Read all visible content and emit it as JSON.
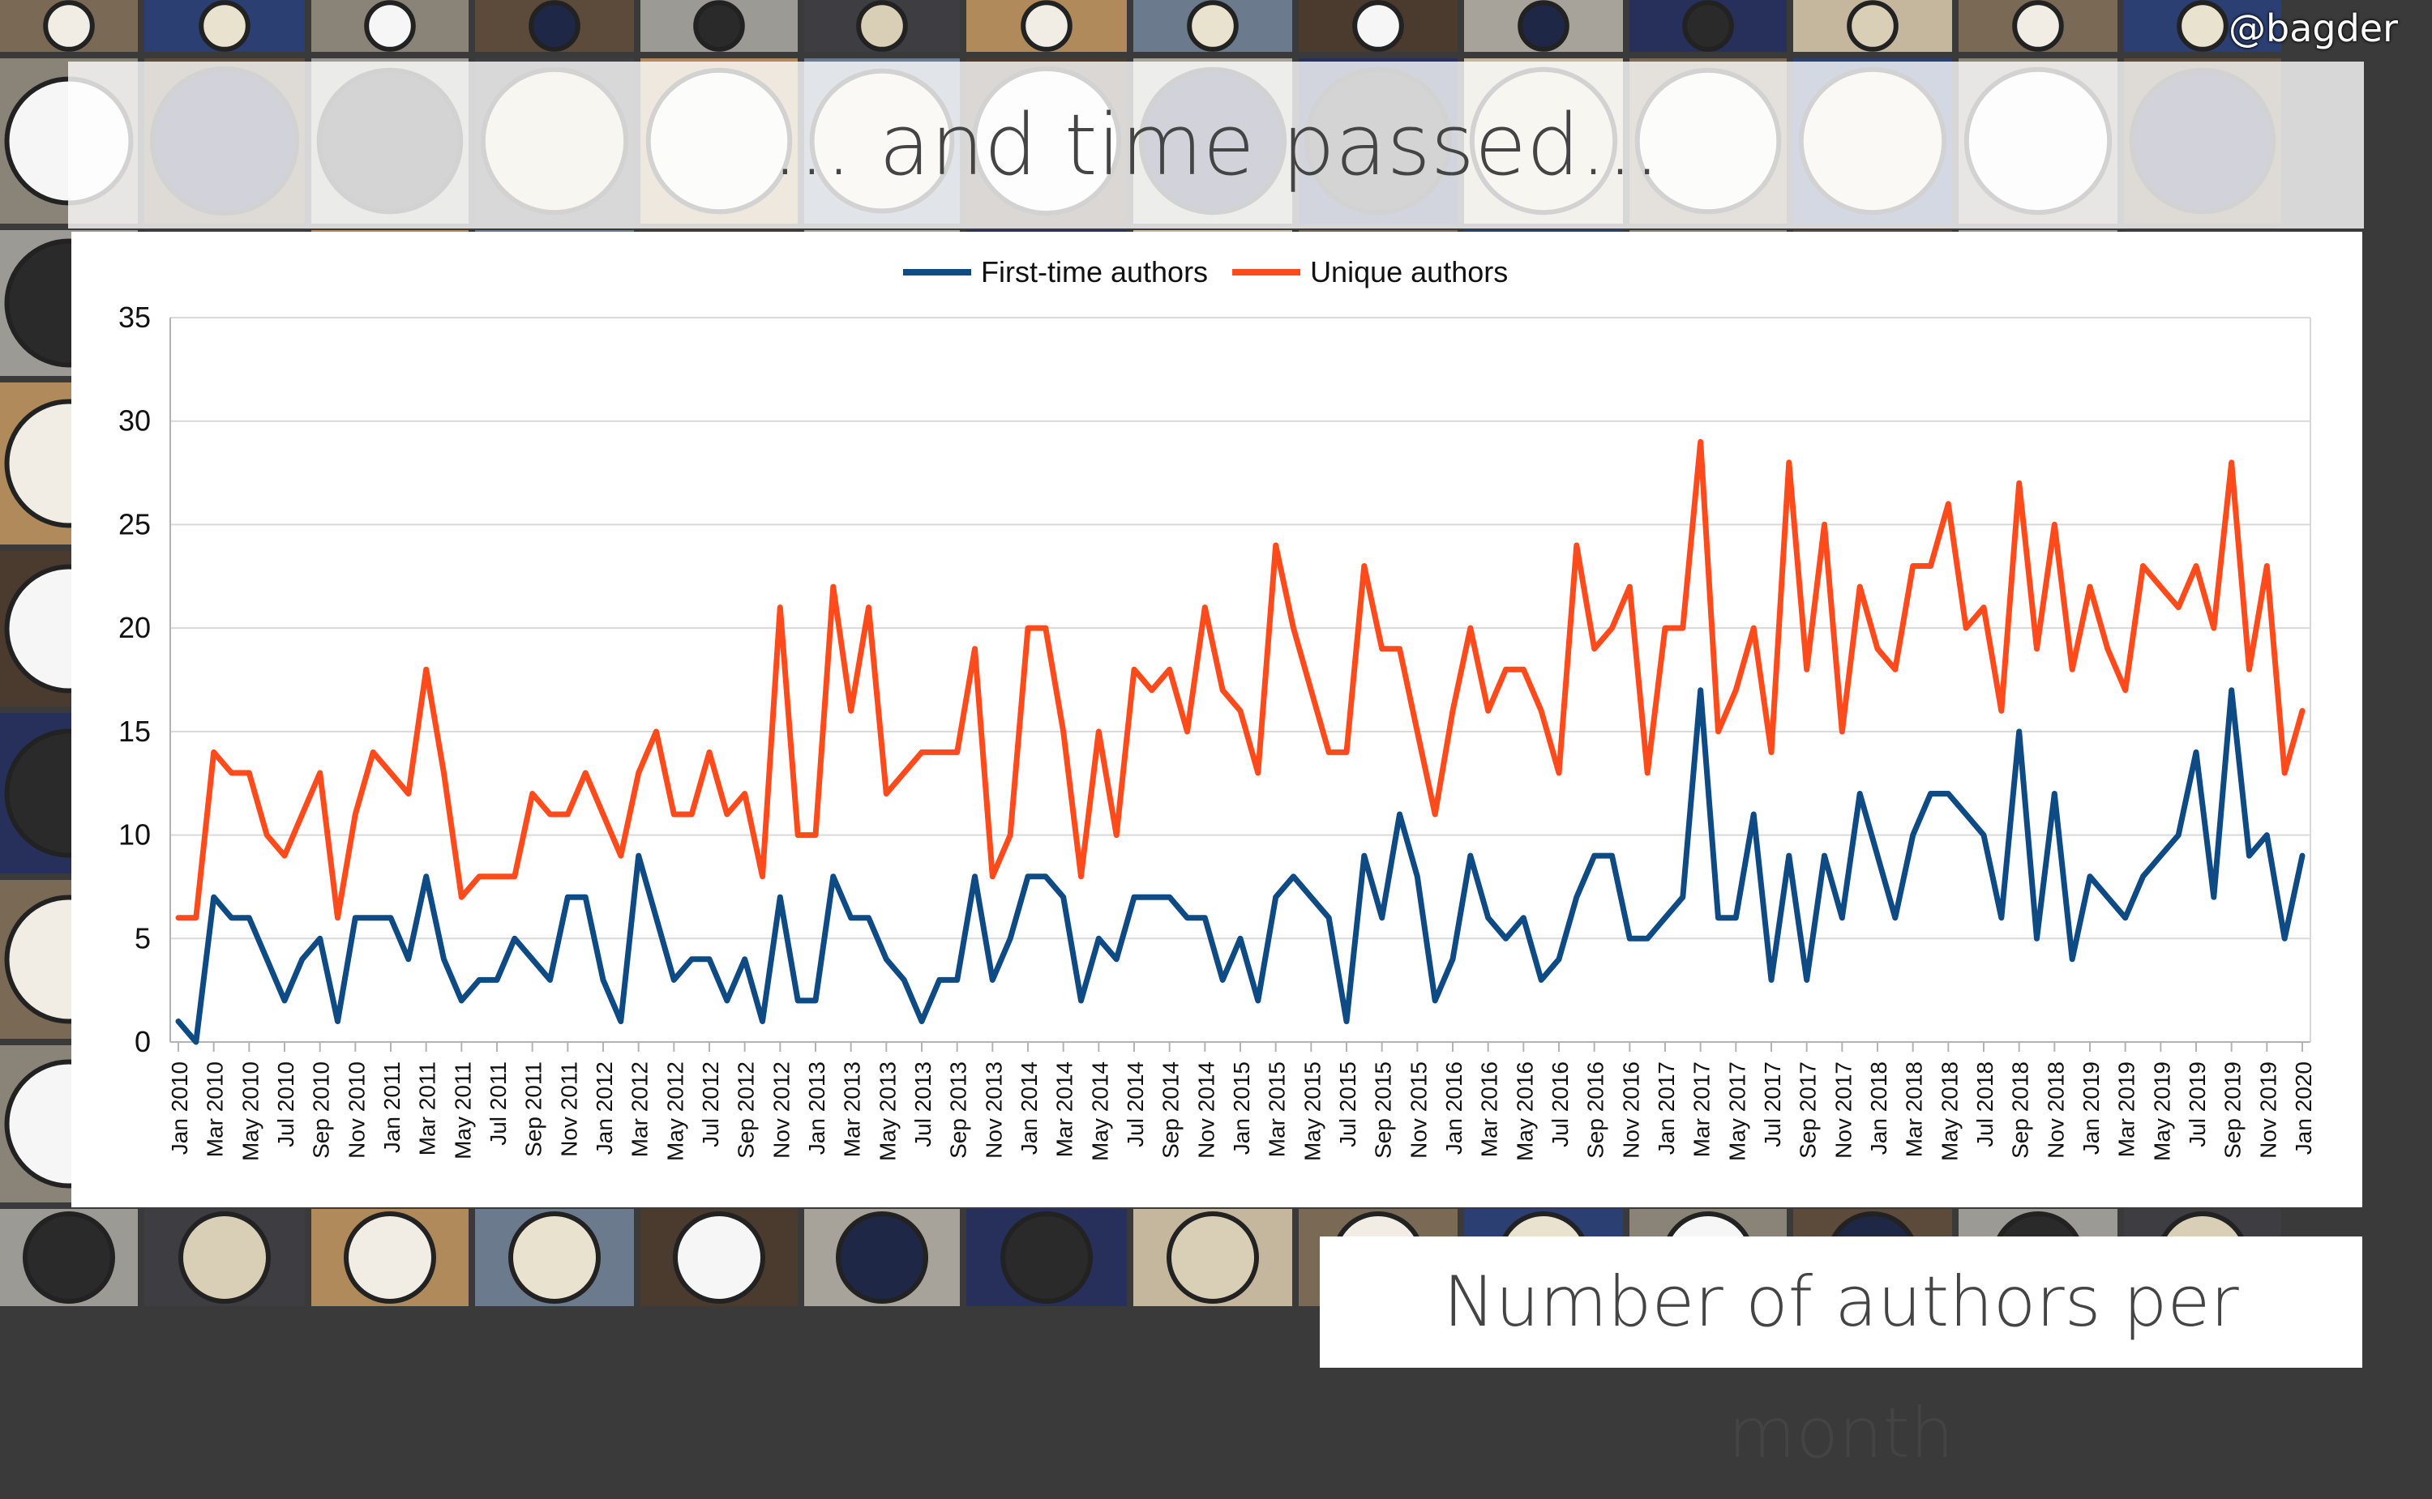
{
  "slide": {
    "title": "... and time passed...",
    "handle": "@bagder",
    "caption": "Number of authors per month"
  },
  "chart_data": {
    "type": "line",
    "title": "",
    "xlabel": "",
    "ylabel": "",
    "ylim": [
      0,
      35
    ],
    "yticks": [
      0,
      5,
      10,
      15,
      20,
      25,
      30,
      35
    ],
    "grid": true,
    "legend_position": "top-center",
    "x_label_every": 2,
    "categories": [
      "Jan 2010",
      "Feb 2010",
      "Mar 2010",
      "Apr 2010",
      "May 2010",
      "Jun 2010",
      "Jul 2010",
      "Aug 2010",
      "Sep 2010",
      "Oct 2010",
      "Nov 2010",
      "Dec 2010",
      "Jan 2011",
      "Feb 2011",
      "Mar 2011",
      "Apr 2011",
      "May 2011",
      "Jun 2011",
      "Jul 2011",
      "Aug 2011",
      "Sep 2011",
      "Oct 2011",
      "Nov 2011",
      "Dec 2011",
      "Jan 2012",
      "Feb 2012",
      "Mar 2012",
      "Apr 2012",
      "May 2012",
      "Jun 2012",
      "Jul 2012",
      "Aug 2012",
      "Sep 2012",
      "Oct 2012",
      "Nov 2012",
      "Dec 2012",
      "Jan 2013",
      "Feb 2013",
      "Mar 2013",
      "Apr 2013",
      "May 2013",
      "Jun 2013",
      "Jul 2013",
      "Aug 2013",
      "Sep 2013",
      "Oct 2013",
      "Nov 2013",
      "Dec 2013",
      "Jan 2014",
      "Feb 2014",
      "Mar 2014",
      "Apr 2014",
      "May 2014",
      "Jun 2014",
      "Jul 2014",
      "Aug 2014",
      "Sep 2014",
      "Oct 2014",
      "Nov 2014",
      "Dec 2014",
      "Jan 2015",
      "Feb 2015",
      "Mar 2015",
      "Apr 2015",
      "May 2015",
      "Jun 2015",
      "Jul 2015",
      "Aug 2015",
      "Sep 2015",
      "Oct 2015",
      "Nov 2015",
      "Dec 2015",
      "Jan 2016",
      "Feb 2016",
      "Mar 2016",
      "Apr 2016",
      "May 2016",
      "Jun 2016",
      "Jul 2016",
      "Aug 2016",
      "Sep 2016",
      "Oct 2016",
      "Nov 2016",
      "Dec 2016",
      "Jan 2017",
      "Feb 2017",
      "Mar 2017",
      "Apr 2017",
      "May 2017",
      "Jun 2017",
      "Jul 2017",
      "Aug 2017",
      "Sep 2017",
      "Oct 2017",
      "Nov 2017",
      "Dec 2017",
      "Jan 2018",
      "Feb 2018",
      "Mar 2018",
      "Apr 2018",
      "May 2018",
      "Jun 2018",
      "Jul 2018",
      "Aug 2018",
      "Sep 2018",
      "Oct 2018",
      "Nov 2018",
      "Dec 2018",
      "Jan 2019",
      "Feb 2019",
      "Mar 2019",
      "Apr 2019",
      "May 2019",
      "Jun 2019",
      "Jul 2019",
      "Aug 2019",
      "Sep 2019",
      "Oct 2019",
      "Nov 2019",
      "Dec 2019",
      "Jan 2020"
    ],
    "series": [
      {
        "name": "First-time authors",
        "color": "#0e4a84",
        "values": [
          1,
          0,
          7,
          6,
          6,
          4,
          2,
          4,
          5,
          1,
          6,
          6,
          6,
          4,
          8,
          4,
          2,
          3,
          3,
          5,
          4,
          3,
          7,
          7,
          3,
          1,
          9,
          6,
          3,
          4,
          4,
          2,
          4,
          1,
          7,
          2,
          2,
          8,
          6,
          6,
          4,
          3,
          1,
          3,
          3,
          8,
          3,
          5,
          8,
          8,
          7,
          2,
          5,
          4,
          7,
          7,
          7,
          6,
          6,
          3,
          5,
          2,
          7,
          8,
          7,
          6,
          1,
          9,
          6,
          11,
          8,
          2,
          4,
          9,
          6,
          5,
          6,
          3,
          4,
          7,
          9,
          9,
          5,
          5,
          6,
          7,
          17,
          6,
          6,
          11,
          3,
          9,
          3,
          9,
          6,
          12,
          9,
          6,
          10,
          12,
          12,
          11,
          10,
          6,
          15,
          5,
          12,
          4,
          8,
          7,
          6,
          8,
          9,
          10,
          14,
          7,
          17,
          9,
          10,
          5,
          9
        ]
      },
      {
        "name": "Unique authors",
        "color": "#ff4b1c",
        "values": [
          6,
          6,
          14,
          13,
          13,
          10,
          9,
          11,
          13,
          6,
          11,
          14,
          13,
          12,
          18,
          13,
          7,
          8,
          8,
          8,
          12,
          11,
          11,
          13,
          11,
          9,
          13,
          15,
          11,
          11,
          14,
          11,
          12,
          8,
          21,
          10,
          10,
          22,
          16,
          21,
          12,
          13,
          14,
          14,
          14,
          19,
          8,
          10,
          20,
          20,
          15,
          8,
          15,
          10,
          18,
          17,
          18,
          15,
          21,
          17,
          16,
          13,
          24,
          20,
          17,
          14,
          14,
          23,
          19,
          19,
          15,
          11,
          16,
          20,
          16,
          18,
          18,
          16,
          13,
          24,
          19,
          20,
          22,
          13,
          20,
          20,
          29,
          15,
          17,
          20,
          14,
          28,
          18,
          25,
          15,
          22,
          19,
          18,
          23,
          23,
          26,
          20,
          21,
          16,
          27,
          19,
          25,
          18,
          22,
          19,
          17,
          23,
          22,
          21,
          23,
          20,
          28,
          18,
          23,
          13,
          16
        ]
      }
    ]
  }
}
